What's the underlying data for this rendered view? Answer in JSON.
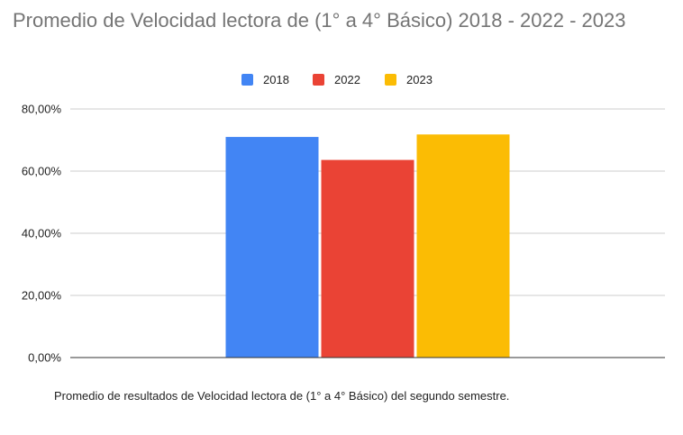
{
  "chart_data": {
    "type": "bar",
    "title": "Promedio de Velocidad lectora de (1° a 4° Básico) 2018 - 2022 - 2023",
    "xlabel": "",
    "ylabel": "",
    "caption": "Promedio de resultados de Velocidad lectora de (1° a 4° Básico) del segundo semestre.",
    "categories": [
      ""
    ],
    "series": [
      {
        "name": "2018",
        "color": "#4285f4",
        "values": [
          71.0
        ]
      },
      {
        "name": "2022",
        "color": "#ea4335",
        "values": [
          63.6
        ]
      },
      {
        "name": "2023",
        "color": "#fbbc04",
        "values": [
          71.8
        ]
      }
    ],
    "ylim": [
      0,
      80
    ],
    "yticks": [
      0,
      20,
      40,
      60,
      80
    ],
    "ytick_labels": [
      "0,00%",
      "20,00%",
      "40,00%",
      "60,00%",
      "80,00%"
    ],
    "grid": true,
    "legend_position": "top"
  }
}
